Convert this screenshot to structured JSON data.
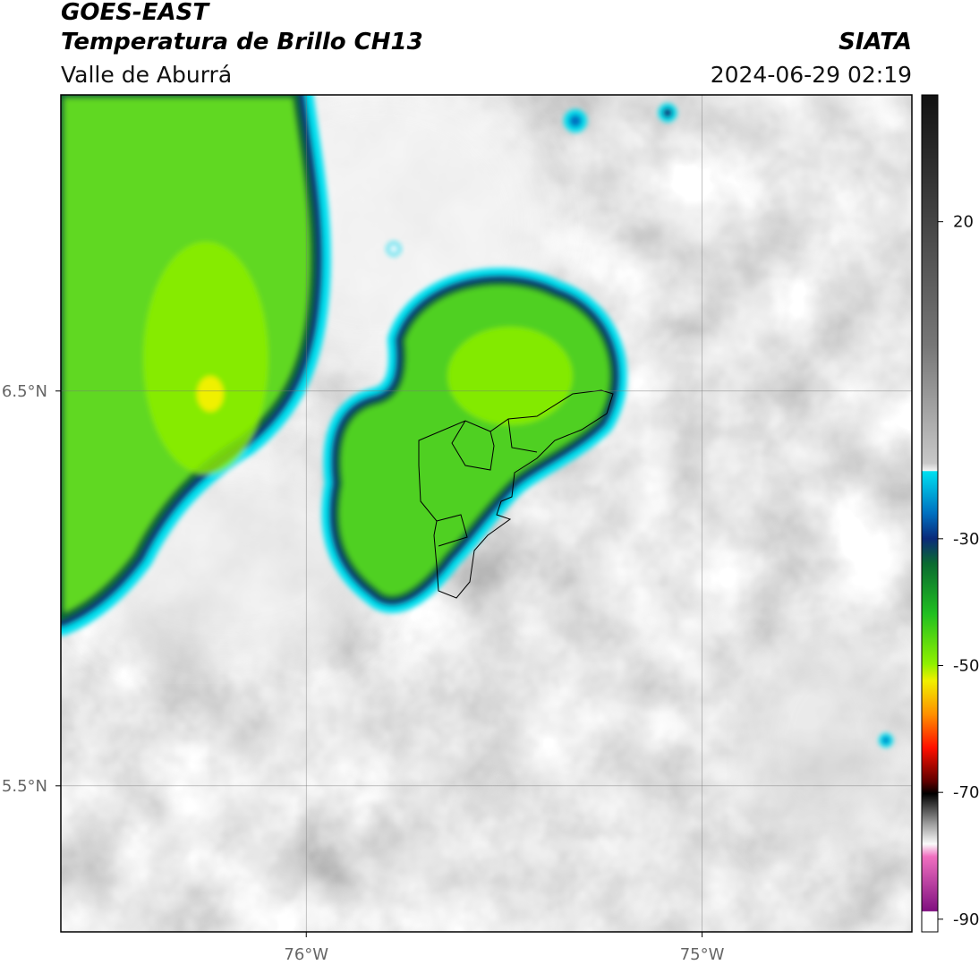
{
  "header": {
    "title": "GOES-EAST",
    "subtitle": "Temperatura de Brillo CH13",
    "region": "Valle de Aburrá",
    "source": "SIATA",
    "datetime": "2024-06-29 02:19"
  },
  "map": {
    "xlim": [
      -76.62,
      -74.47
    ],
    "ylim": [
      5.13,
      7.25
    ],
    "xticks": [
      {
        "value": -76,
        "label": "76°W"
      },
      {
        "value": -75,
        "label": "75°W"
      }
    ],
    "yticks": [
      {
        "value": 6.5,
        "label": "6.5°N"
      },
      {
        "value": 5.5,
        "label": "5.5°N"
      }
    ]
  },
  "colorbar": {
    "lim": [
      -92,
      40
    ],
    "ticks": [
      20,
      -30,
      -50,
      -70,
      -90
    ]
  }
}
